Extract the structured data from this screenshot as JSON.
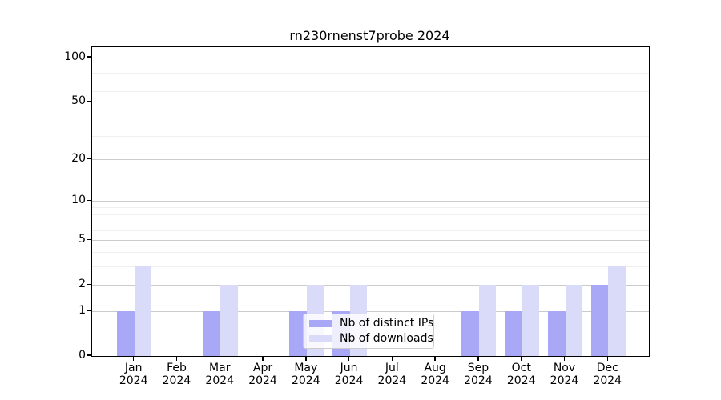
{
  "chart_data": {
    "type": "bar",
    "title": "rn230rnenst7probe 2024",
    "categories": [
      "Jan 2024",
      "Feb 2024",
      "Mar 2024",
      "Apr 2024",
      "May 2024",
      "Jun 2024",
      "Jul 2024",
      "Aug 2024",
      "Sep 2024",
      "Oct 2024",
      "Nov 2024",
      "Dec 2024"
    ],
    "series": [
      {
        "name": "Nb of distinct IPs",
        "color": "#a8a8f6",
        "values": [
          1,
          0,
          1,
          0,
          1,
          1,
          0,
          0,
          1,
          1,
          1,
          2
        ]
      },
      {
        "name": "Nb of downloads",
        "color": "#dadaf9",
        "values": [
          3,
          0,
          2,
          0,
          2,
          2,
          0,
          0,
          2,
          2,
          2,
          3
        ]
      }
    ],
    "y_axis": {
      "scale": "log10(1+value)",
      "tick_values": [
        0,
        1,
        2,
        5,
        10,
        20,
        50,
        100
      ],
      "tick_labels": [
        "0",
        "1",
        "2",
        "5",
        "10",
        "20",
        "50",
        "100"
      ],
      "minor_gridlines_in_1plusv": [
        4,
        5,
        7,
        8,
        9,
        10,
        30,
        40,
        60,
        70,
        80,
        90
      ],
      "ylim": [
        0,
        120
      ]
    },
    "x_axis": {
      "label_line2": "2024"
    },
    "legend": {
      "position": "lower center"
    },
    "grid": true,
    "colors": {
      "bar_distinct_ips": "#a8a8f6",
      "bar_downloads": "#dadaf9",
      "major_grid": "#cbcbcb",
      "minor_grid": "#efefef",
      "axis": "#000000",
      "text": "#000000",
      "background": "#ffffff"
    }
  }
}
